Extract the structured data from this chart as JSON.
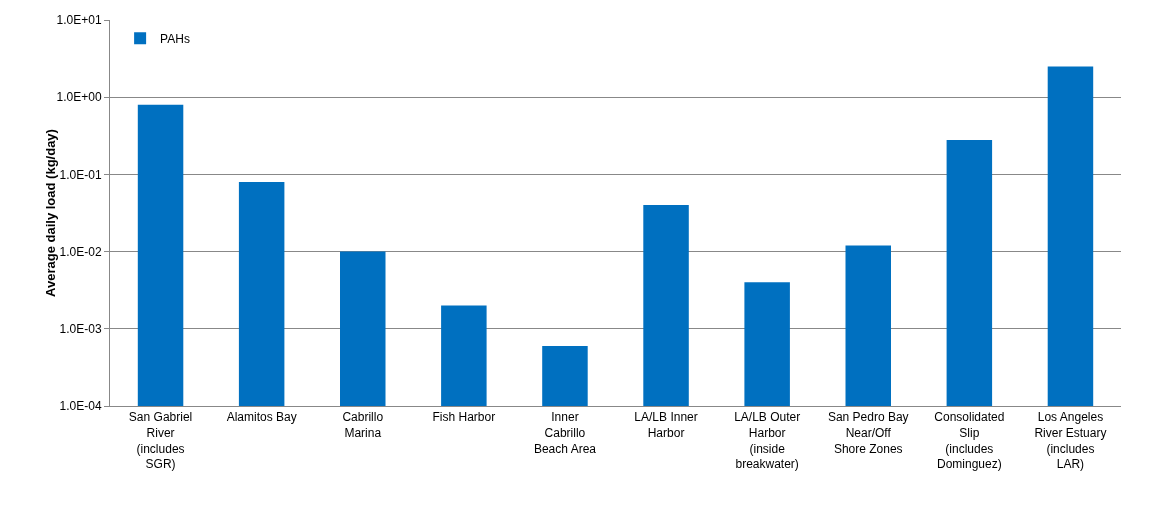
{
  "chart_data": {
    "type": "bar",
    "ylabel": "Average daily load (kg/day)",
    "categories": [
      "San Gabriel River (includes SGR)",
      "Alamitos Bay",
      "Cabrillo Marina",
      "Fish Harbor",
      "Inner Cabrillo Beach Area",
      "LA/LB Inner Harbor",
      "LA/LB Outer Harbor (inside breakwater)",
      "San Pedro Bay Near/Off Shore Zones",
      "Consolidated Slip (includes Dominguez)",
      "Los Angeles River Estuary (includes LAR)"
    ],
    "series": [
      {
        "name": "PAHs",
        "color": "#0070c0",
        "values": [
          0.8,
          0.08,
          0.01,
          0.002,
          0.0006,
          0.04,
          0.004,
          0.012,
          0.28,
          2.5
        ]
      }
    ],
    "log": true,
    "ylim": [
      0.0001,
      10
    ],
    "yticks": [
      {
        "value": 0.0001,
        "label": "1.0E-04"
      },
      {
        "value": 0.001,
        "label": "1.0E-03"
      },
      {
        "value": 0.01,
        "label": "1.0E-02"
      },
      {
        "value": 0.1,
        "label": "1.0E-01"
      },
      {
        "value": 1,
        "label": "1.0E+00"
      },
      {
        "value": 10,
        "label": "1.0E+01"
      }
    ],
    "grid": "y",
    "legend": "top left"
  }
}
